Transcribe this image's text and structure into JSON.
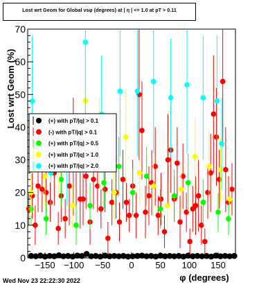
{
  "title": "Lost wrt Geom for Global vsφ (degrees) at | η | <= 1.0 at pT > 0.11",
  "footer": "Wed Nov 23 22:22:30 2022",
  "chart_data": {
    "type": "scatter",
    "title": "Lost wrt Geom for Global vsφ (degrees) at | η | <= 1.0 at pT > 0.11",
    "xlabel": "φ (degrees)",
    "ylabel": "Lost wrt Geom (%)",
    "xlim": [
      -180,
      180
    ],
    "ylim": [
      0,
      70
    ],
    "xticks": [
      -150,
      -100,
      -50,
      0,
      50,
      100,
      150
    ],
    "xtick_labels": [
      "−150",
      "−100",
      "−50",
      "0",
      "50",
      "100",
      "150"
    ],
    "yticks": [
      0,
      10,
      20,
      30,
      40,
      50,
      60,
      70
    ],
    "ytick_labels": [
      "0",
      "10",
      "20",
      "30",
      "40",
      "50",
      "60",
      "70"
    ],
    "grid": false,
    "legend_position": "left-middle",
    "series": [
      {
        "name": "(+) with pT/|q| > 0.1",
        "color": "#000000",
        "points": [
          [
            -174,
            0.6,
            0.3
          ],
          [
            -166,
            0.5,
            0.3
          ],
          [
            -158,
            0.7,
            0.3
          ],
          [
            -150,
            0.4,
            0.3
          ],
          [
            -142,
            0.6,
            0.3
          ],
          [
            -134,
            0.5,
            0.3
          ],
          [
            -126,
            0.8,
            0.3
          ],
          [
            -118,
            0.5,
            0.3
          ],
          [
            -110,
            0.6,
            0.3
          ],
          [
            -102,
            0.4,
            0.3
          ],
          [
            -94,
            0.7,
            0.3
          ],
          [
            -86,
            0.6,
            0.3
          ],
          [
            -78,
            1.2,
            0.4
          ],
          [
            -70,
            0.5,
            0.3
          ],
          [
            -62,
            0.6,
            0.3
          ],
          [
            -54,
            0.4,
            0.3
          ],
          [
            -46,
            0.7,
            0.3
          ],
          [
            -38,
            0.5,
            0.3
          ],
          [
            -30,
            0.6,
            0.3
          ],
          [
            -22,
            0.5,
            0.3
          ],
          [
            -14,
            0.6,
            0.3
          ],
          [
            -6,
            0.4,
            0.3
          ],
          [
            2,
            0.5,
            0.3
          ],
          [
            10,
            0.6,
            0.3
          ],
          [
            18,
            0.7,
            0.3
          ],
          [
            26,
            0.5,
            0.3
          ],
          [
            34,
            0.6,
            0.3
          ],
          [
            42,
            0.4,
            0.3
          ],
          [
            50,
            0.7,
            0.3
          ],
          [
            58,
            0.5,
            0.3
          ],
          [
            66,
            0.6,
            0.3
          ],
          [
            74,
            0.5,
            0.3
          ],
          [
            82,
            0.6,
            0.3
          ],
          [
            90,
            0.4,
            0.3
          ],
          [
            98,
            0.7,
            0.3
          ],
          [
            106,
            0.5,
            0.3
          ],
          [
            114,
            0.6,
            0.3
          ],
          [
            122,
            0.5,
            0.3
          ],
          [
            130,
            0.6,
            0.3
          ],
          [
            138,
            0.4,
            0.3
          ],
          [
            146,
            0.7,
            0.3
          ],
          [
            154,
            0.5,
            0.3
          ],
          [
            162,
            0.6,
            0.3
          ],
          [
            170,
            0.5,
            0.3
          ],
          [
            178,
            0.6,
            0.3
          ]
        ]
      },
      {
        "name": "(-) with pT/|q| > 0.1",
        "color": "#ff0000",
        "points": [
          [
            -178,
            15,
            5
          ],
          [
            -172,
            19,
            7
          ],
          [
            -167,
            10,
            6
          ],
          [
            -162,
            22,
            8
          ],
          [
            -155,
            21,
            7
          ],
          [
            -148,
            20,
            9
          ],
          [
            -141,
            17,
            6
          ],
          [
            -134,
            26,
            10
          ],
          [
            -127,
            9,
            5
          ],
          [
            -122,
            19,
            8
          ],
          [
            -115,
            12,
            6
          ],
          [
            -108,
            22,
            12
          ],
          [
            -101,
            31,
            18
          ],
          [
            -96,
            27,
            15
          ],
          [
            -89,
            18,
            9
          ],
          [
            -84,
            18,
            8
          ],
          [
            -79,
            25,
            10
          ],
          [
            -72,
            11,
            7
          ],
          [
            -66,
            24,
            9
          ],
          [
            -59,
            22,
            8
          ],
          [
            -53,
            15,
            6
          ],
          [
            -46,
            21,
            7
          ],
          [
            -41,
            6,
            5
          ],
          [
            -34,
            17,
            7
          ],
          [
            -27,
            20,
            8
          ],
          [
            -21,
            11,
            6
          ],
          [
            -15,
            24,
            9
          ],
          [
            -9,
            17,
            6
          ],
          [
            -4,
            13,
            5
          ],
          [
            2,
            22,
            8
          ],
          [
            8,
            13,
            7
          ],
          [
            13,
            50,
            20
          ],
          [
            18,
            39,
            15
          ],
          [
            24,
            14,
            8
          ],
          [
            30,
            19,
            9
          ],
          [
            35,
            23,
            10
          ],
          [
            41,
            28,
            12
          ],
          [
            46,
            13,
            6
          ],
          [
            51,
            18,
            8
          ],
          [
            57,
            8,
            5
          ],
          [
            63,
            30,
            14
          ],
          [
            68,
            33,
            13
          ],
          [
            74,
            18,
            7
          ],
          [
            79,
            29,
            11
          ],
          [
            84,
            11,
            8
          ],
          [
            89,
            25,
            10
          ],
          [
            95,
            14,
            6
          ],
          [
            101,
            5,
            4
          ],
          [
            106,
            15,
            7
          ],
          [
            111,
            16,
            9
          ],
          [
            116,
            19,
            11
          ],
          [
            121,
            10,
            6
          ],
          [
            127,
            5,
            4
          ],
          [
            132,
            20,
            8
          ],
          [
            137,
            26,
            12
          ],
          [
            142,
            44,
            18
          ],
          [
            147,
            37,
            15
          ],
          [
            152,
            24,
            9
          ],
          [
            158,
            54,
            20
          ],
          [
            163,
            27,
            13
          ],
          [
            168,
            17,
            8
          ],
          [
            174,
            21,
            8
          ]
        ]
      },
      {
        "name": "(+) with pT/|q| > 0.5",
        "color": "#00ff00",
        "points": [
          [
            -174,
            15,
            5
          ],
          [
            -148,
            12,
            5
          ],
          [
            -122,
            24,
            8
          ],
          [
            -96,
            10,
            6
          ],
          [
            -72,
            16,
            7
          ],
          [
            -48,
            23,
            8
          ],
          [
            -22,
            28,
            9
          ],
          [
            2,
            20,
            7
          ],
          [
            26,
            25,
            9
          ],
          [
            50,
            15,
            6
          ],
          [
            74,
            19,
            8
          ],
          [
            98,
            23,
            9
          ],
          [
            124,
            17,
            7
          ],
          [
            150,
            14,
            6
          ],
          [
            168,
            12,
            5
          ]
        ]
      },
      {
        "name": "(+) with pT/|q| > 1.0",
        "color": "#ffff00",
        "points": [
          [
            -174,
            20,
            7
          ],
          [
            -150,
            25,
            9
          ],
          [
            -126,
            30,
            11
          ],
          [
            -102,
            16,
            7
          ],
          [
            -80,
            48,
            20
          ],
          [
            -56,
            35,
            14
          ],
          [
            -30,
            20,
            8
          ],
          [
            -10,
            37,
            15
          ],
          [
            14,
            26,
            10
          ],
          [
            38,
            22,
            9
          ],
          [
            62,
            16,
            7
          ],
          [
            86,
            21,
            8
          ],
          [
            110,
            31,
            12
          ],
          [
            134,
            28,
            11
          ],
          [
            154,
            27,
            10
          ],
          [
            170,
            18,
            8
          ]
        ]
      },
      {
        "name": "(+) with pT/|q| > 2.0",
        "color": "#00ffff",
        "points": [
          [
            -172,
            48,
            20
          ],
          [
            -140,
            26,
            10
          ],
          [
            -112,
            27,
            11
          ],
          [
            -80,
            66,
            28
          ],
          [
            -52,
            44,
            18
          ],
          [
            -20,
            51,
            20
          ],
          [
            10,
            51,
            20
          ],
          [
            38,
            54,
            22
          ],
          [
            68,
            49,
            18
          ],
          [
            96,
            53,
            21
          ],
          [
            124,
            49,
            19
          ],
          [
            148,
            48,
            20
          ],
          [
            156,
            35,
            14
          ]
        ]
      }
    ]
  }
}
